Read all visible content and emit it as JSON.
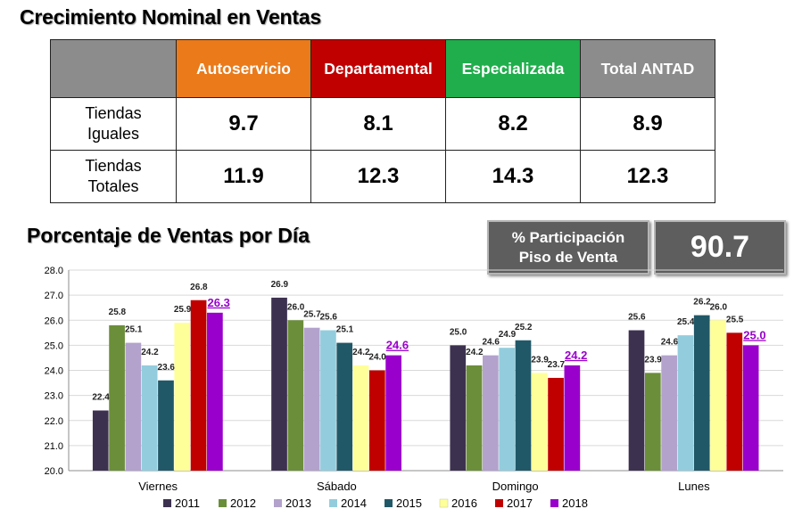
{
  "header": {
    "title": "Crecimiento Nominal en Ventas"
  },
  "table": {
    "columns": [
      {
        "label": "Autoservicio",
        "color": "#ea7a1a"
      },
      {
        "label": "Departamental",
        "color": "#c00000"
      },
      {
        "label": "Especializada",
        "color": "#1fae4b"
      },
      {
        "label": "Total ANTAD",
        "color": "#8c8c8c"
      }
    ],
    "rows": [
      {
        "label_line1": "Tiendas",
        "label_line2": "Iguales",
        "values": [
          "9.7",
          "8.1",
          "8.2",
          "8.9"
        ]
      },
      {
        "label_line1": "Tiendas",
        "label_line2": "Totales",
        "values": [
          "11.9",
          "12.3",
          "14.3",
          "12.3"
        ]
      }
    ]
  },
  "section2": {
    "title": "Porcentaje de Ventas por Día"
  },
  "badge": {
    "label_line1": "% Participación",
    "label_line2": "Piso de Venta",
    "value": "90.7"
  },
  "chart_data": {
    "type": "bar",
    "categories": [
      "Viernes",
      "Sábado",
      "Domingo",
      "Lunes"
    ],
    "ylim": [
      20.0,
      28.0
    ],
    "yticks": [
      "20.0",
      "21.0",
      "22.0",
      "23.0",
      "24.0",
      "25.0",
      "26.0",
      "27.0",
      "28.0"
    ],
    "legend_position": "bottom",
    "series": [
      {
        "name": "2011",
        "color": "#3d3150",
        "values": [
          22.4,
          26.9,
          25.0,
          25.6
        ]
      },
      {
        "name": "2012",
        "color": "#6b8e3a",
        "values": [
          25.8,
          26.0,
          24.2,
          23.9
        ]
      },
      {
        "name": "2013",
        "color": "#b3a2cc",
        "values": [
          25.1,
          25.7,
          24.6,
          24.6
        ]
      },
      {
        "name": "2014",
        "color": "#93cddd",
        "values": [
          24.2,
          25.6,
          24.9,
          25.4
        ]
      },
      {
        "name": "2015",
        "color": "#215868",
        "values": [
          23.6,
          25.1,
          25.2,
          26.2
        ]
      },
      {
        "name": "2016",
        "color": "#ffff99",
        "values": [
          25.9,
          24.2,
          23.9,
          26.0
        ]
      },
      {
        "name": "2017",
        "color": "#c00000",
        "values": [
          26.8,
          24.0,
          23.7,
          25.5
        ]
      },
      {
        "name": "2018",
        "color": "#9900cc",
        "values": [
          26.3,
          24.6,
          24.2,
          25.0
        ]
      }
    ],
    "labels": [
      [
        "22.4",
        "25.8",
        "25.1",
        "24.2",
        "23.6",
        "25.9",
        "26.8",
        "26.3"
      ],
      [
        "26.9",
        "26.0",
        "25.7",
        "25.6",
        "25.1",
        "24.2",
        "24.0",
        "24.6"
      ],
      [
        "25.0",
        "24.2",
        "24.6",
        "24.9",
        "25.2",
        "23.9",
        "23.7",
        "24.2"
      ],
      [
        "25.6",
        "23.9",
        "24.6",
        "25.4",
        "26.2",
        "26.0",
        "25.5",
        "25.0"
      ]
    ]
  }
}
